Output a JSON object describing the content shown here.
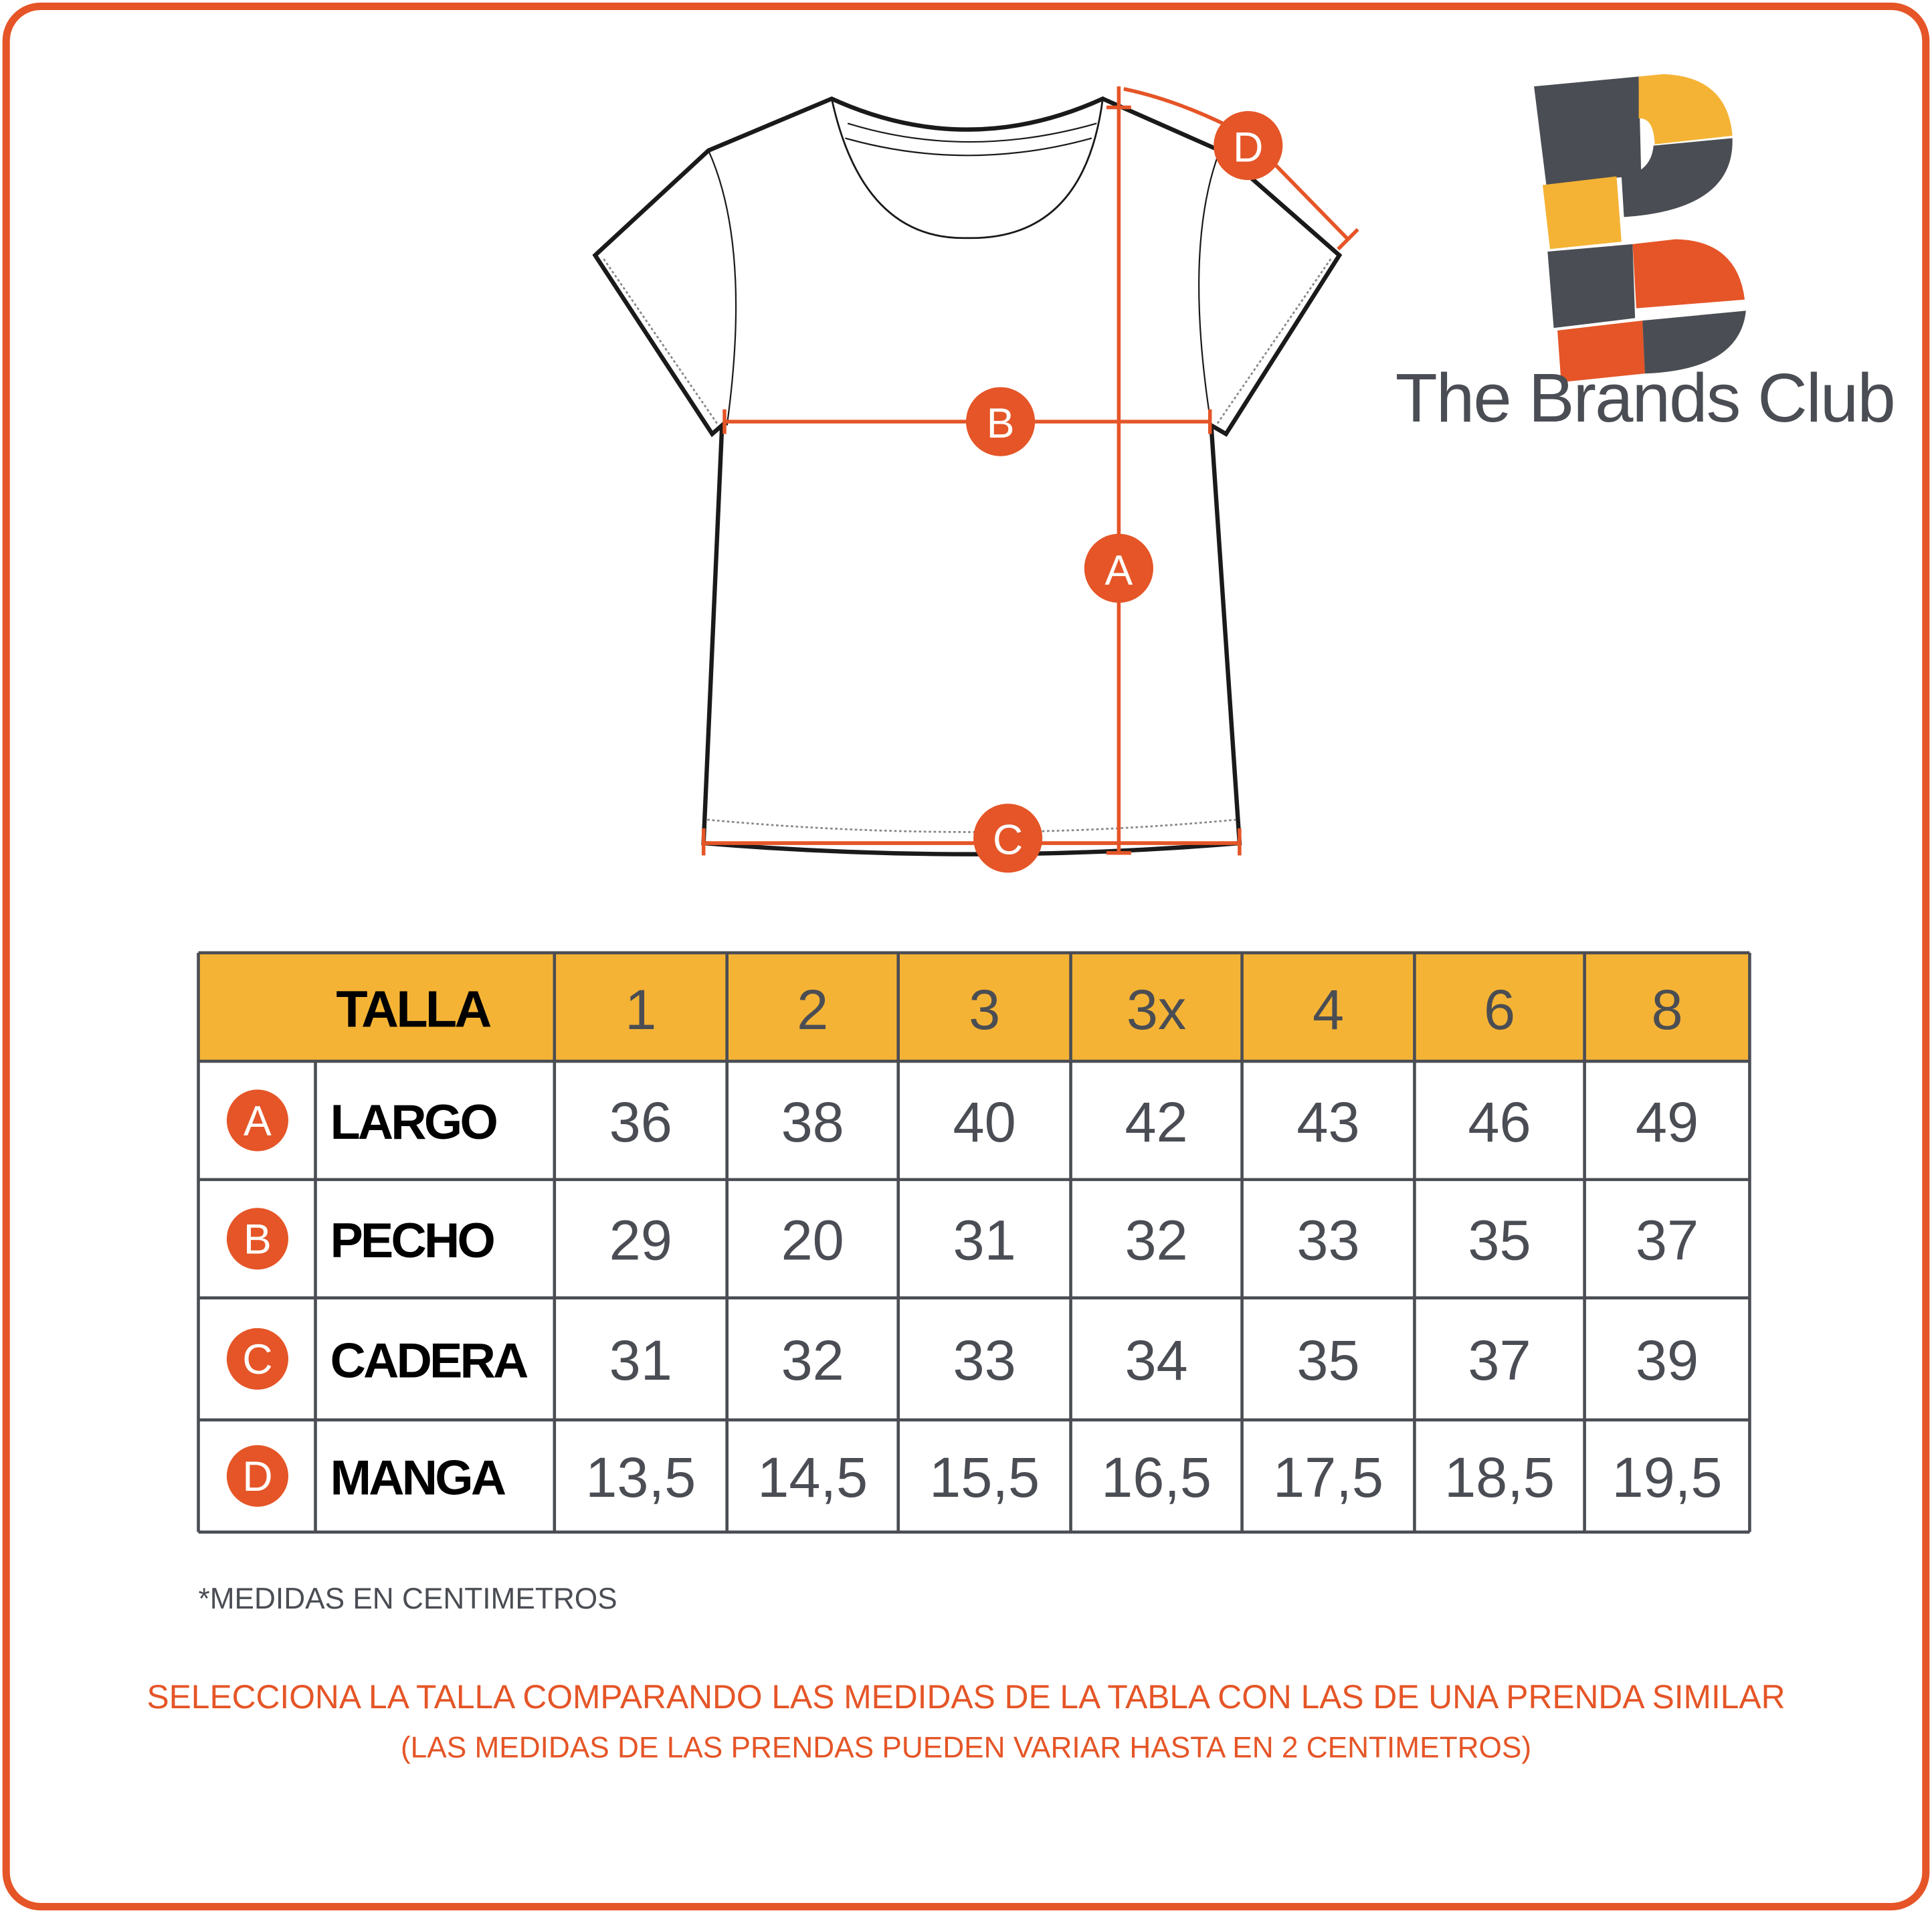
{
  "colors": {
    "accent": "#e55527",
    "header_fill": "#f5b335",
    "text_dark": "#4a4d53",
    "border": "#4a4d53"
  },
  "brand": {
    "name": "The Brands Club"
  },
  "diagram": {
    "markers": [
      "A",
      "B",
      "C",
      "D"
    ]
  },
  "table": {
    "header_label": "TALLA",
    "sizes": [
      "1",
      "2",
      "3",
      "3x",
      "4",
      "6",
      "8"
    ],
    "rows": [
      {
        "badge": "A",
        "label": "LARGO",
        "values": [
          "36",
          "38",
          "40",
          "42",
          "43",
          "46",
          "49"
        ]
      },
      {
        "badge": "B",
        "label": "PECHO",
        "values": [
          "29",
          "20",
          "31",
          "32",
          "33",
          "35",
          "37"
        ]
      },
      {
        "badge": "C",
        "label": "CADERA",
        "values": [
          "31",
          "32",
          "33",
          "34",
          "35",
          "37",
          "39"
        ]
      },
      {
        "badge": "D",
        "label": "MANGA",
        "values": [
          "13,5",
          "14,5",
          "15,5",
          "16,5",
          "17,5",
          "18,5",
          "19,5"
        ]
      }
    ]
  },
  "notes": {
    "units": "*MEDIDAS EN CENTIMETROS",
    "instruction_line1": "SELECCIONA LA TALLA COMPARANDO LAS MEDIDAS DE LA TABLA CON LAS DE UNA PRENDA SIMILAR",
    "instruction_line2": "(LAS MEDIDAS DE LAS PRENDAS PUEDEN VARIAR HASTA EN 2 CENTIMETROS)"
  }
}
